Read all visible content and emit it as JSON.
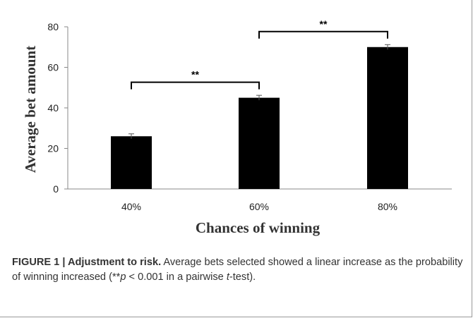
{
  "chart_data": {
    "type": "bar",
    "categories": [
      "40%",
      "60%",
      "80%"
    ],
    "values": [
      26,
      45,
      70
    ],
    "errors": [
      1.2,
      1.2,
      1.2
    ],
    "xlabel": "Chances of winning",
    "ylabel": "Average bet amount",
    "ylim": [
      0,
      80
    ],
    "yticks": [
      0,
      20,
      40,
      60,
      80
    ],
    "grid": false,
    "bar_color": "#000000",
    "significance": [
      {
        "from": 0,
        "to": 1,
        "label": "**"
      },
      {
        "from": 1,
        "to": 2,
        "label": "**"
      }
    ]
  },
  "caption": {
    "label": "FIGURE 1 | Adjustment to risk.",
    "text_before": " Average bets selected showed a linear increase as the probability of winning increased (**",
    "p_var": "p",
    "text_mid": " < 0.001 in a pairwise ",
    "t_var": "t",
    "text_after": "-test)."
  }
}
